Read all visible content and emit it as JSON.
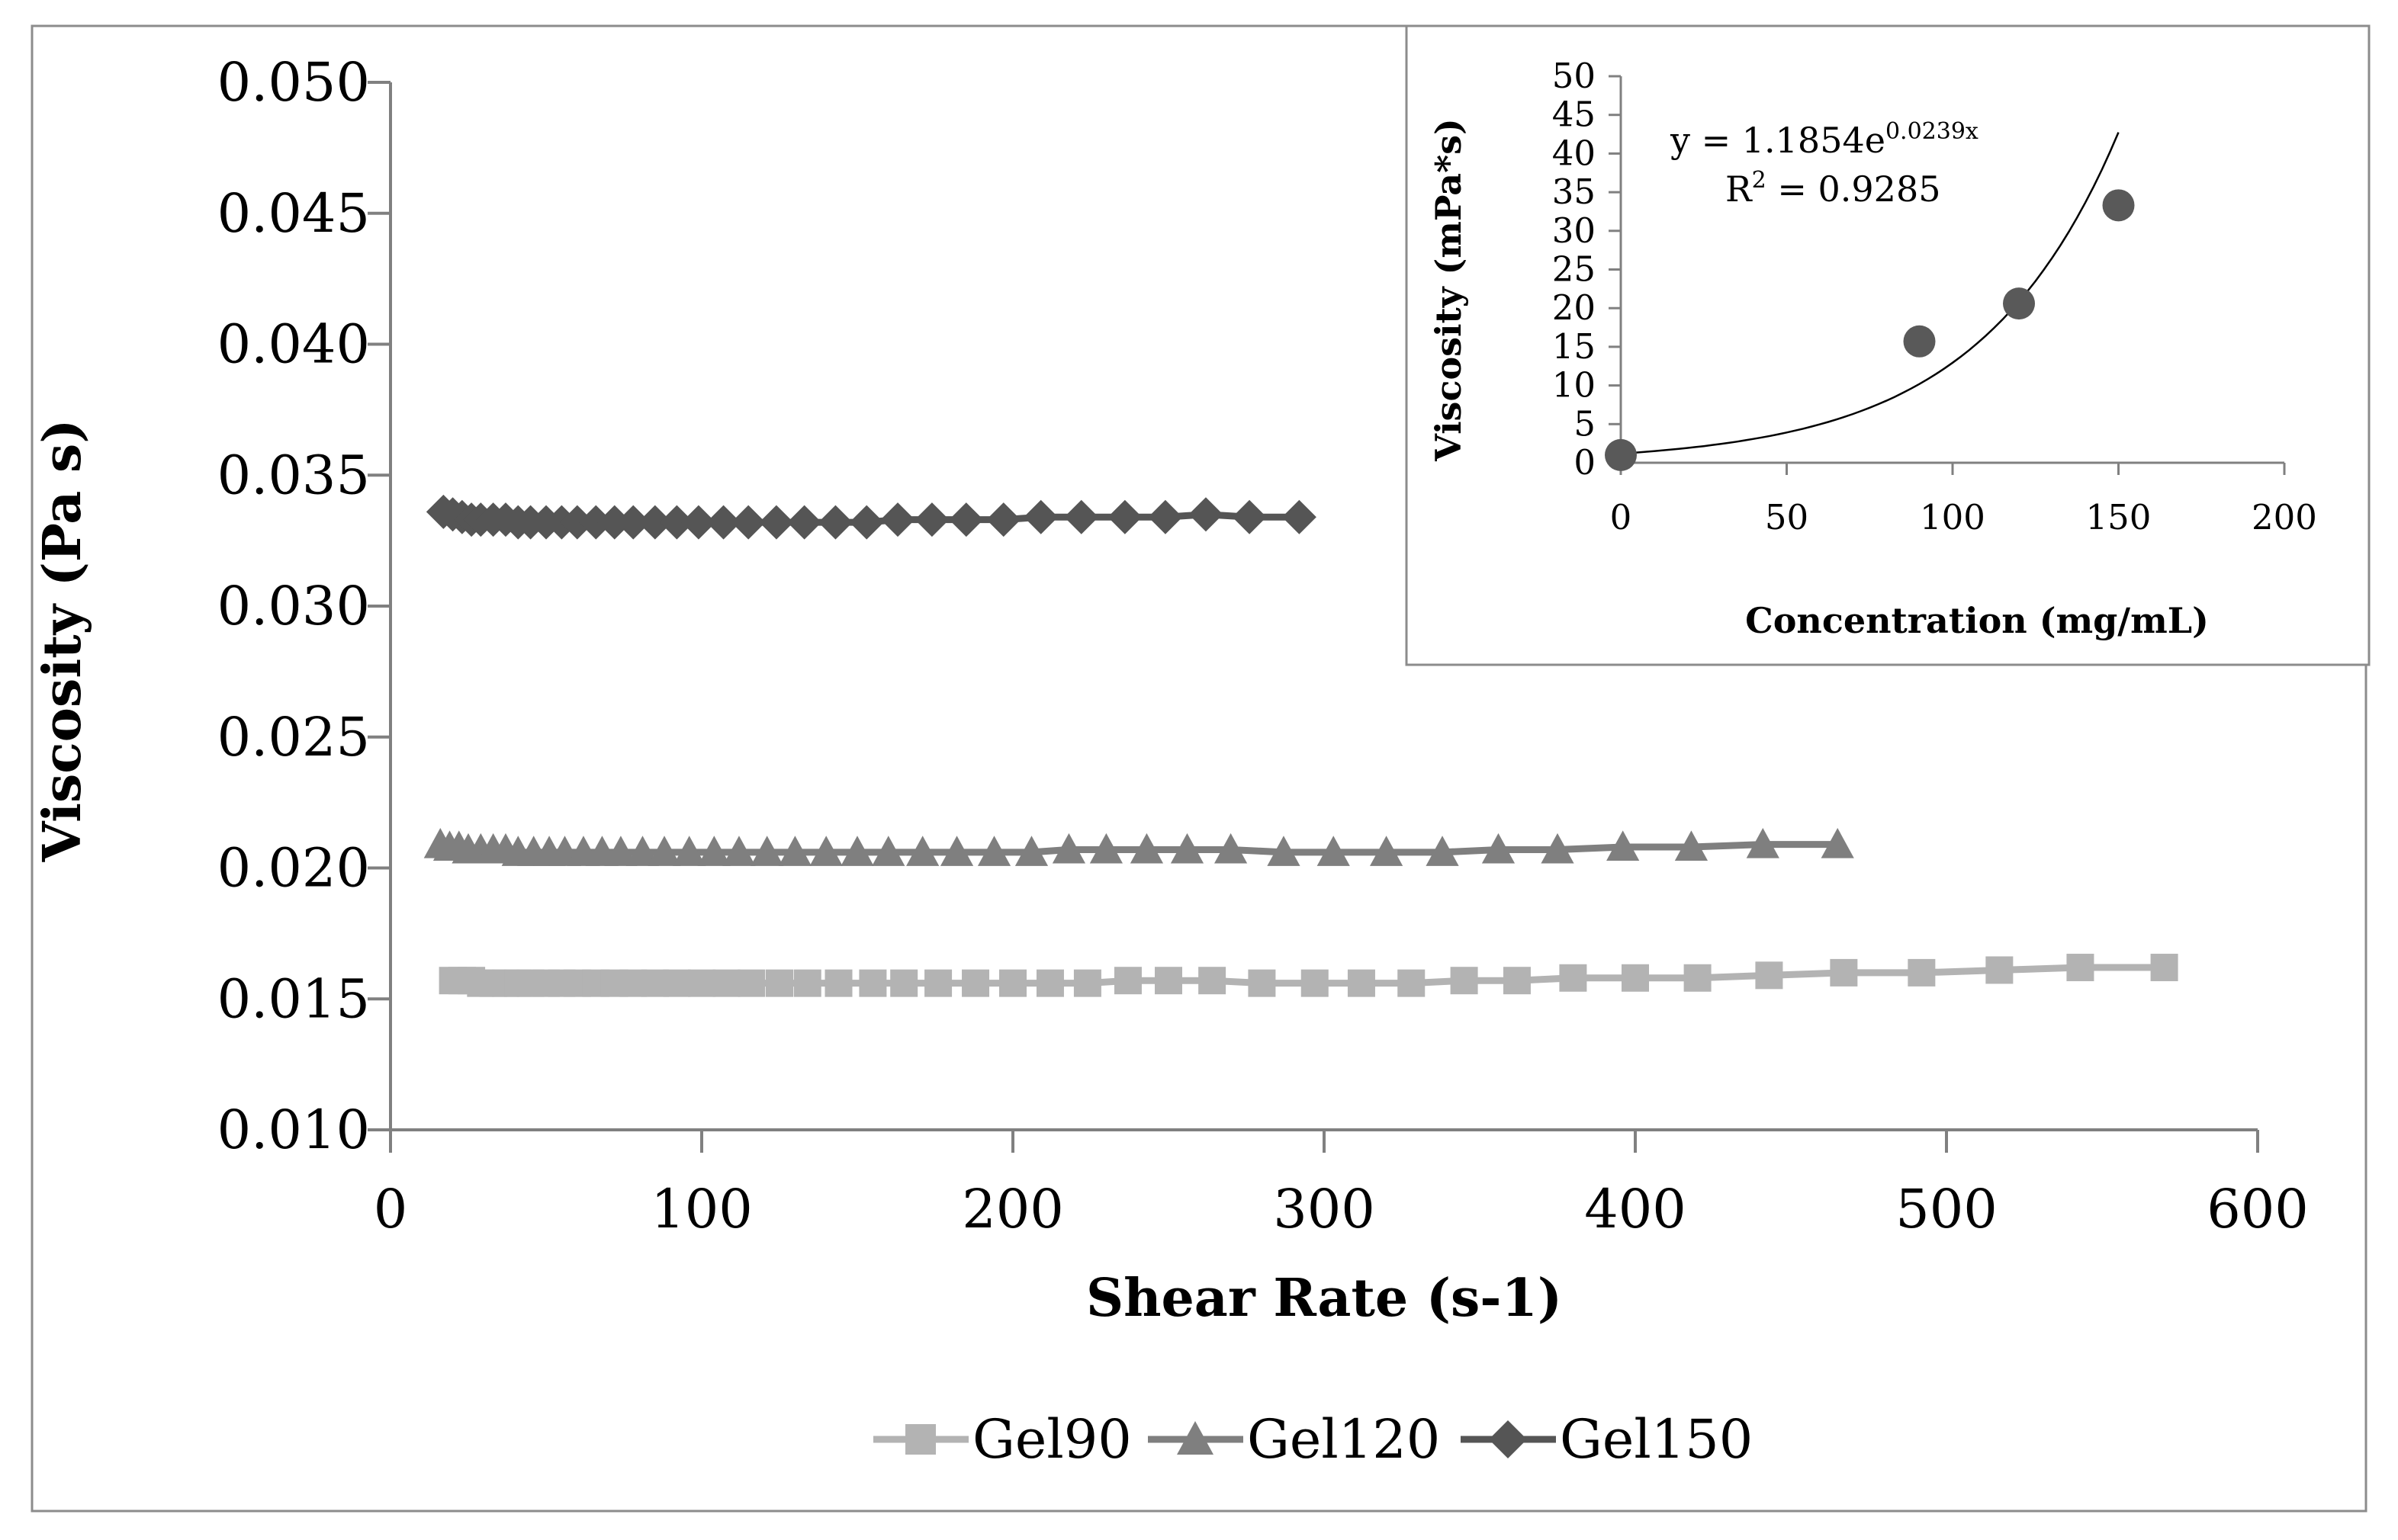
{
  "chart_data": [
    {
      "type": "line",
      "title": "",
      "xlabel": "Shear Rate (s-1)",
      "ylabel": "Viscosity (Pa s)",
      "xlim": [
        0,
        600
      ],
      "ylim": [
        0.01,
        0.05
      ],
      "xticks": [
        "0",
        "100",
        "200",
        "300",
        "400",
        "500",
        "600"
      ],
      "yticks": [
        "0.010",
        "0.015",
        "0.020",
        "0.025",
        "0.030",
        "0.035",
        "0.040",
        "0.045",
        "0.050"
      ],
      "legend_position": "bottom",
      "series": [
        {
          "name": "Gel90",
          "marker": "square",
          "color": "#b3b3b3",
          "x": [
            20,
            23,
            26,
            29,
            33,
            37,
            41,
            45,
            50,
            55,
            60,
            66,
            72,
            78,
            85,
            92,
            100,
            108,
            116,
            125,
            134,
            144,
            155,
            165,
            176,
            188,
            200,
            212,
            224,
            237,
            250,
            264,
            280,
            297,
            312,
            328,
            345,
            362,
            380,
            400,
            420,
            443,
            467,
            492,
            517,
            543,
            570
          ],
          "y": [
            0.0157,
            0.0157,
            0.0157,
            0.0156,
            0.0156,
            0.0156,
            0.0156,
            0.0156,
            0.0156,
            0.0156,
            0.0156,
            0.0156,
            0.0156,
            0.0156,
            0.0156,
            0.0156,
            0.0156,
            0.0156,
            0.0156,
            0.0156,
            0.0156,
            0.0156,
            0.0156,
            0.0156,
            0.0156,
            0.0156,
            0.0156,
            0.0156,
            0.0156,
            0.0157,
            0.0157,
            0.0157,
            0.0156,
            0.0156,
            0.0156,
            0.0156,
            0.0157,
            0.0157,
            0.0158,
            0.0158,
            0.0158,
            0.0159,
            0.016,
            0.016,
            0.0161,
            0.0162,
            0.0162
          ]
        },
        {
          "name": "Gel120",
          "marker": "triangle",
          "color": "#7f7f7f",
          "x": [
            16,
            19,
            22,
            25,
            29,
            33,
            37,
            41,
            46,
            51,
            56,
            62,
            68,
            74,
            81,
            88,
            96,
            104,
            112,
            121,
            130,
            140,
            150,
            160,
            171,
            182,
            194,
            206,
            218,
            230,
            243,
            256,
            270,
            287,
            303,
            320,
            338,
            356,
            375,
            396,
            418,
            441,
            465
          ],
          "y": [
            0.0209,
            0.0208,
            0.0208,
            0.0207,
            0.0207,
            0.0207,
            0.0207,
            0.0206,
            0.0206,
            0.0206,
            0.0206,
            0.0206,
            0.0206,
            0.0206,
            0.0206,
            0.0206,
            0.0206,
            0.0206,
            0.0206,
            0.0206,
            0.0206,
            0.0206,
            0.0206,
            0.0206,
            0.0206,
            0.0206,
            0.0206,
            0.0206,
            0.0207,
            0.0207,
            0.0207,
            0.0207,
            0.0207,
            0.0206,
            0.0206,
            0.0206,
            0.0206,
            0.0207,
            0.0207,
            0.0208,
            0.0208,
            0.0209,
            0.0209
          ]
        },
        {
          "name": "Gel150",
          "marker": "diamond",
          "color": "#555555",
          "x": [
            17,
            20,
            23,
            26,
            29,
            33,
            37,
            41,
            45,
            50,
            55,
            60,
            66,
            72,
            78,
            85,
            92,
            99,
            107,
            115,
            124,
            133,
            143,
            153,
            163,
            174,
            185,
            197,
            209,
            222,
            236,
            249,
            262,
            276,
            292
          ],
          "y": [
            0.0336,
            0.0335,
            0.0334,
            0.0333,
            0.0333,
            0.0333,
            0.0333,
            0.0332,
            0.0332,
            0.0332,
            0.0332,
            0.0332,
            0.0332,
            0.0332,
            0.0332,
            0.0332,
            0.0332,
            0.0332,
            0.0332,
            0.0332,
            0.0332,
            0.0332,
            0.0332,
            0.0332,
            0.0333,
            0.0333,
            0.0333,
            0.0333,
            0.0334,
            0.0334,
            0.0334,
            0.0334,
            0.0335,
            0.0334,
            0.0334
          ]
        }
      ]
    },
    {
      "type": "scatter",
      "title": "",
      "xlabel": "Concentration (mg/mL)",
      "ylabel": "Viscosity (mPa*s)",
      "xlim": [
        0,
        200
      ],
      "ylim": [
        0,
        50
      ],
      "xticks": [
        "0",
        "50",
        "100",
        "150",
        "200"
      ],
      "yticks": [
        "0",
        "5",
        "10",
        "15",
        "20",
        "25",
        "30",
        "35",
        "40",
        "45",
        "50"
      ],
      "series": [
        {
          "name": "Viscosity",
          "color": "#595959",
          "x": [
            0,
            90,
            120,
            150
          ],
          "y": [
            1.0,
            15.7,
            20.6,
            33.3
          ]
        }
      ],
      "trendline": {
        "type": "exponential",
        "a": 1.1854,
        "b": 0.0239,
        "x_range": [
          0,
          150
        ],
        "equation_prefix": "y = 1.1854e",
        "equation_exponent": "0.0239x",
        "r2_prefix": "R",
        "r2_sup": "2",
        "r2_value": " = 0.9285"
      }
    }
  ]
}
